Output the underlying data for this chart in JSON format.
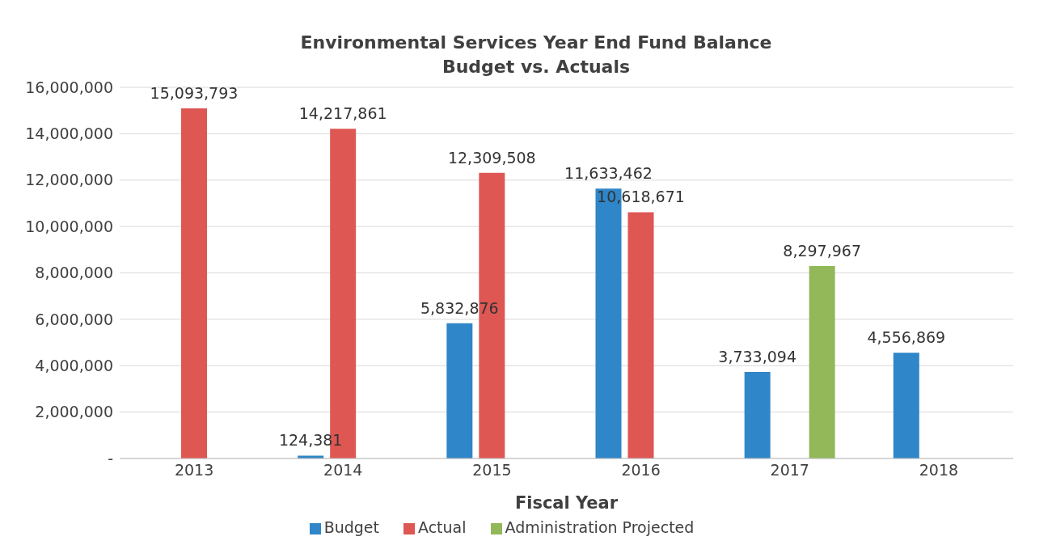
{
  "chart_data": {
    "type": "bar",
    "title": "Environmental Services Year End Fund Balance",
    "subtitle": "Budget vs. Actuals",
    "xlabel": "Fiscal Year",
    "categories": [
      "2013",
      "2014",
      "2015",
      "2016",
      "2017",
      "2018"
    ],
    "series": [
      {
        "name": "Budget",
        "color": "#2f86c8",
        "values": [
          null,
          124381,
          5832876,
          11633462,
          3733094,
          4556869
        ],
        "value_labels": [
          null,
          "124,381",
          "5,832,876",
          "11,633,462",
          "3,733,094",
          "4,556,869"
        ]
      },
      {
        "name": "Actual",
        "color": "#de5753",
        "values": [
          15093793,
          14217861,
          12309508,
          10618671,
          null,
          null
        ],
        "value_labels": [
          "15,093,793",
          "14,217,861",
          "12,309,508",
          "10,618,671",
          null,
          null
        ]
      },
      {
        "name": "Administration Projected",
        "color": "#93b85a",
        "values": [
          null,
          null,
          null,
          null,
          8297967,
          null
        ],
        "value_labels": [
          null,
          null,
          null,
          null,
          "8,297,967",
          null
        ]
      }
    ],
    "ylim": [
      0,
      16000000
    ],
    "yticks": [
      {
        "value": 0,
        "label": "-"
      },
      {
        "value": 2000000,
        "label": "2,000,000"
      },
      {
        "value": 4000000,
        "label": "4,000,000"
      },
      {
        "value": 6000000,
        "label": "6,000,000"
      },
      {
        "value": 8000000,
        "label": "8,000,000"
      },
      {
        "value": 10000000,
        "label": "10,000,000"
      },
      {
        "value": 12000000,
        "label": "12,000,000"
      },
      {
        "value": 14000000,
        "label": "14,000,000"
      },
      {
        "value": 16000000,
        "label": "16,000,000"
      }
    ],
    "grid": "y",
    "legend": "bottom"
  }
}
